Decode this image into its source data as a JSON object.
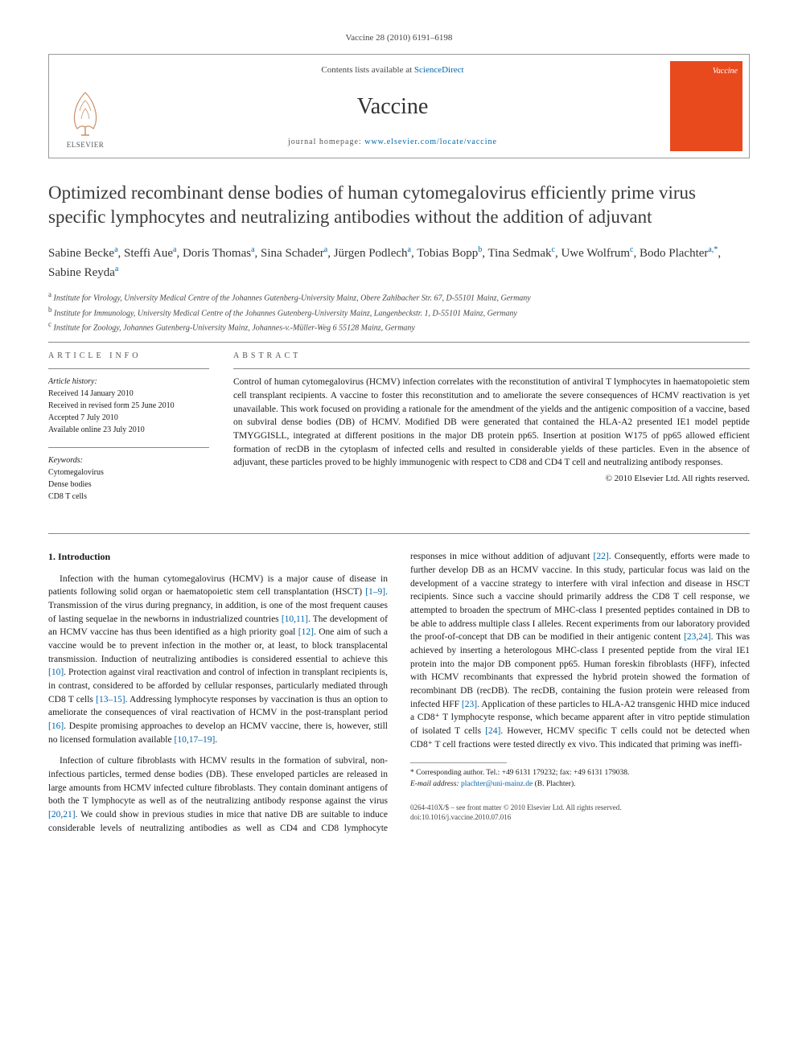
{
  "journal_ref": "Vaccine 28 (2010) 6191–6198",
  "header": {
    "contents_prefix": "Contents lists available at ",
    "contents_link": "ScienceDirect",
    "journal_name": "Vaccine",
    "homepage_prefix": "journal homepage: ",
    "homepage_url": "www.elsevier.com/locate/vaccine",
    "publisher": "ELSEVIER",
    "cover_label": "Vaccine"
  },
  "title": "Optimized recombinant dense bodies of human cytomegalovirus efficiently prime virus specific lymphocytes and neutralizing antibodies without the addition of adjuvant",
  "authors_html": "Sabine Becke<sup>a</sup>, Steffi Aue<sup>a</sup>, Doris Thomas<sup>a</sup>, Sina Schader<sup>a</sup>, Jürgen Podlech<sup>a</sup>, Tobias Bopp<sup>b</sup>, Tina Sedmak<sup>c</sup>, Uwe Wolfrum<sup>c</sup>, Bodo Plachter<sup>a,*</sup>, Sabine Reyda<sup>a</sup>",
  "affiliations": {
    "a": "Institute for Virology, University Medical Centre of the Johannes Gutenberg-University Mainz, Obere Zahlbacher Str. 67, D-55101 Mainz, Germany",
    "b": "Institute for Immunology, University Medical Centre of the Johannes Gutenberg-University Mainz, Langenbeckstr. 1, D-55101 Mainz, Germany",
    "c": "Institute for Zoology, Johannes Gutenberg-University Mainz, Johannes-v.-Müller-Weg 6 55128 Mainz, Germany"
  },
  "article_info": {
    "heading": "ARTICLE INFO",
    "history_label": "Article history:",
    "received": "Received 14 January 2010",
    "revised": "Received in revised form 25 June 2010",
    "accepted": "Accepted 7 July 2010",
    "online": "Available online 23 July 2010",
    "keywords_label": "Keywords:",
    "keywords": [
      "Cytomegalovirus",
      "Dense bodies",
      "CD8 T cells"
    ]
  },
  "abstract": {
    "heading": "ABSTRACT",
    "text": "Control of human cytomegalovirus (HCMV) infection correlates with the reconstitution of antiviral T lymphocytes in haematopoietic stem cell transplant recipients. A vaccine to foster this reconstitution and to ameliorate the severe consequences of HCMV reactivation is yet unavailable. This work focused on providing a rationale for the amendment of the yields and the antigenic composition of a vaccine, based on subviral dense bodies (DB) of HCMV. Modified DB were generated that contained the HLA-A2 presented IE1 model peptide TMYGGISLL, integrated at different positions in the major DB protein pp65. Insertion at position W175 of pp65 allowed efficient formation of recDB in the cytoplasm of infected cells and resulted in considerable yields of these particles. Even in the absence of adjuvant, these particles proved to be highly immunogenic with respect to CD8 and CD4 T cell and neutralizing antibody responses.",
    "copyright": "© 2010 Elsevier Ltd. All rights reserved."
  },
  "body": {
    "section_heading": "1.  Introduction",
    "p1_pre": "Infection with the human cytomegalovirus (HCMV) is a major cause of disease in patients following solid organ or haematopoietic stem cell transplantation (HSCT) ",
    "ref1": "[1–9]",
    "p1_mid1": ". Transmission of the virus during pregnancy, in addition, is one of the most frequent causes of lasting sequelae in the newborns in industrialized countries ",
    "ref2": "[10,11]",
    "p1_mid2": ". The development of an HCMV vaccine has thus been identified as a high priority goal ",
    "ref3": "[12]",
    "p1_mid3": ". One aim of such a vaccine would be to prevent infection in the mother or, at least, to block transplacental transmission. Induction of neutralizing antibodies is considered essential to achieve this ",
    "ref4": "[10]",
    "p1_mid4": ". Protection against viral reactivation and control of infection in transplant recipients is, in contrast, considered to be afforded by cellular responses, particularly mediated through CD8 T cells ",
    "ref5": "[13–15]",
    "p1_mid5": ". Addressing lymphocyte responses by vaccination is thus an option to ameliorate the consequences of viral reactivation of HCMV in the post-transplant period ",
    "ref6": "[16]",
    "p1_mid6": ". Despite promising approaches to develop an HCMV vaccine, there is, however, still no licensed formulation available ",
    "ref7": "[10,17–19]",
    "p1_end": ".",
    "p2_pre": "Infection of culture fibroblasts with HCMV results in the formation of subviral, non-infectious particles, termed dense bodies ",
    "p2_cont": "(DB). These enveloped particles are released in large amounts from HCMV infected culture fibroblasts. They contain dominant antigens of both the T lymphocyte as well as of the neutralizing antibody response against the virus ",
    "ref8": "[20,21]",
    "p2_mid1": ". We could show in previous studies in mice that native DB are suitable to induce considerable levels of neutralizing antibodies as well as CD4 and CD8 lymphocyte responses in mice without addition of adjuvant ",
    "ref9": "[22]",
    "p2_mid2": ". Consequently, efforts were made to further develop DB as an HCMV vaccine. In this study, particular focus was laid on the development of a vaccine strategy to interfere with viral infection and disease in HSCT recipients. Since such a vaccine should primarily address the CD8 T cell response, we attempted to broaden the spectrum of MHC-class I presented peptides contained in DB to be able to address multiple class I alleles. Recent experiments from our laboratory provided the proof-of-concept that DB can be modified in their antigenic content ",
    "ref10": "[23,24]",
    "p2_mid3": ". This was achieved by inserting a heterologous MHC-class I presented peptide from the viral IE1 protein into the major DB component pp65. Human foreskin fibroblasts (HFF), infected with HCMV recombinants that expressed the hybrid protein showed the formation of recombinant DB (recDB). The recDB, containing the fusion protein were released from infected HFF ",
    "ref11": "[23]",
    "p2_mid4": ". Application of these particles to HLA-A2 transgenic HHD mice induced a CD8⁺ T lymphocyte response, which became apparent after in vitro peptide stimulation of isolated T cells ",
    "ref12": "[24]",
    "p2_mid5": ". However, HCMV specific T cells could not be detected when CD8⁺ T cell fractions were tested directly ex vivo. This indicated that priming was ineffi-"
  },
  "footnotes": {
    "corr": "* Corresponding author. Tel.: +49 6131 179232; fax: +49 6131 179038.",
    "email_label": "E-mail address: ",
    "email": "plachter@uni-mainz.de",
    "email_suffix": " (B. Plachter)."
  },
  "footer": {
    "line1": "0264-410X/$ – see front matter © 2010 Elsevier Ltd. All rights reserved.",
    "line2": "doi:10.1016/j.vaccine.2010.07.016"
  },
  "colors": {
    "link": "#0066aa",
    "cover_bg": "#e84a1e",
    "text": "#1a1a1a",
    "rule": "#888888"
  }
}
